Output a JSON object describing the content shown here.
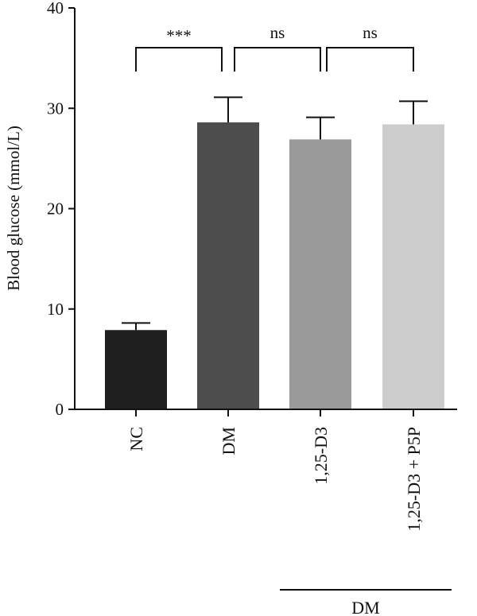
{
  "chart_data": {
    "type": "bar",
    "title": "",
    "xlabel": "",
    "ylabel": "Blood glucose (mmol/L)",
    "ylim": [
      0,
      40
    ],
    "yticks": [
      0,
      10,
      20,
      30,
      40
    ],
    "grid": false,
    "legend": "none",
    "categories": [
      "NC",
      "DM",
      "1,25-D3",
      "1,25-D3 + P5P"
    ],
    "values": [
      7.9,
      28.6,
      26.9,
      28.4
    ],
    "errors": [
      0.7,
      2.5,
      2.2,
      2.3
    ],
    "bar_colors": [
      "#1e1e1e",
      "#4d4d4d",
      "#9a9a9a",
      "#cccccc"
    ],
    "significance": [
      {
        "from": 0,
        "to": 1,
        "label": "***"
      },
      {
        "from": 1,
        "to": 2,
        "label": "ns"
      },
      {
        "from": 2,
        "to": 3,
        "label": "ns"
      }
    ],
    "group_label": {
      "label": "DM",
      "from": 2,
      "to": 3
    }
  }
}
